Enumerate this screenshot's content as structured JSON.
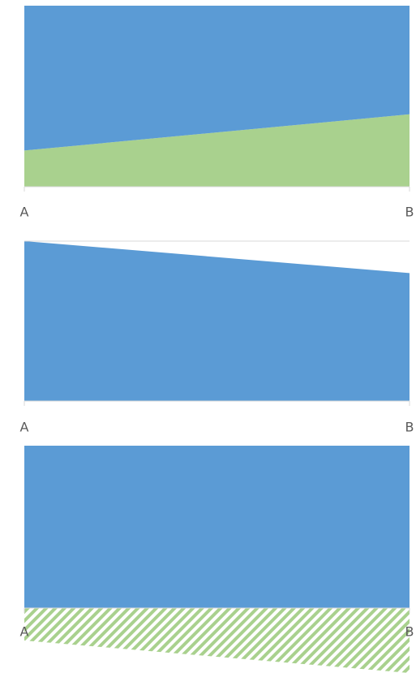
{
  "chart_data": [
    {
      "type": "area",
      "categories": [
        "A",
        "B"
      ],
      "series": [
        {
          "color": "#a9d18e",
          "values": [
            20,
            40
          ]
        },
        {
          "color": "#5b9bd5",
          "values": [
            80,
            60
          ]
        }
      ],
      "ylim": [
        0,
        100
      ],
      "grid": false
    },
    {
      "type": "area",
      "categories": [
        "A",
        "B"
      ],
      "series": [
        {
          "color": "#5b9bd5",
          "values": [
            100,
            80
          ]
        }
      ],
      "ylim": [
        0,
        100
      ],
      "grid": true
    },
    {
      "type": "area",
      "categories": [
        "A",
        "B"
      ],
      "series": [
        {
          "color": "#5b9bd5",
          "values": [
            100,
            100
          ]
        },
        {
          "color": "#a9d18e",
          "pattern": "hatch",
          "values": [
            -20,
            -40
          ]
        }
      ],
      "ylim": [
        -40,
        100
      ],
      "grid": false
    }
  ]
}
